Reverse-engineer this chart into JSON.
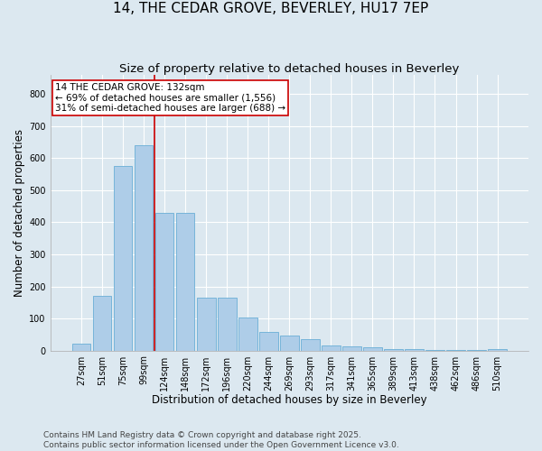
{
  "title": "14, THE CEDAR GROVE, BEVERLEY, HU17 7EP",
  "subtitle": "Size of property relative to detached houses in Beverley",
  "xlabel": "Distribution of detached houses by size in Beverley",
  "ylabel": "Number of detached properties",
  "categories": [
    "27sqm",
    "51sqm",
    "75sqm",
    "99sqm",
    "124sqm",
    "148sqm",
    "172sqm",
    "196sqm",
    "220sqm",
    "244sqm",
    "269sqm",
    "293sqm",
    "317sqm",
    "341sqm",
    "365sqm",
    "389sqm",
    "413sqm",
    "438sqm",
    "462sqm",
    "486sqm",
    "510sqm"
  ],
  "values": [
    20,
    170,
    575,
    640,
    430,
    430,
    165,
    165,
    103,
    57,
    48,
    35,
    16,
    12,
    9,
    5,
    4,
    2,
    1,
    1,
    5
  ],
  "bar_color": "#aecde8",
  "bar_edge_color": "#6aaed6",
  "vline_x": 3.5,
  "vline_color": "#cc0000",
  "annotation_line1": "14 THE CEDAR GROVE: 132sqm",
  "annotation_line2": "← 69% of detached houses are smaller (1,556)",
  "annotation_line3": "31% of semi-detached houses are larger (688) →",
  "annotation_box_color": "#ffffff",
  "annotation_box_edge": "#cc0000",
  "ylim": [
    0,
    860
  ],
  "yticks": [
    0,
    100,
    200,
    300,
    400,
    500,
    600,
    700,
    800
  ],
  "bg_color": "#dce8f0",
  "plot_bg_color": "#dce8f0",
  "footer_line1": "Contains HM Land Registry data © Crown copyright and database right 2025.",
  "footer_line2": "Contains public sector information licensed under the Open Government Licence v3.0.",
  "title_fontsize": 11,
  "subtitle_fontsize": 9.5,
  "axis_label_fontsize": 8.5,
  "tick_fontsize": 7,
  "annotation_fontsize": 7.5,
  "footer_fontsize": 6.5
}
